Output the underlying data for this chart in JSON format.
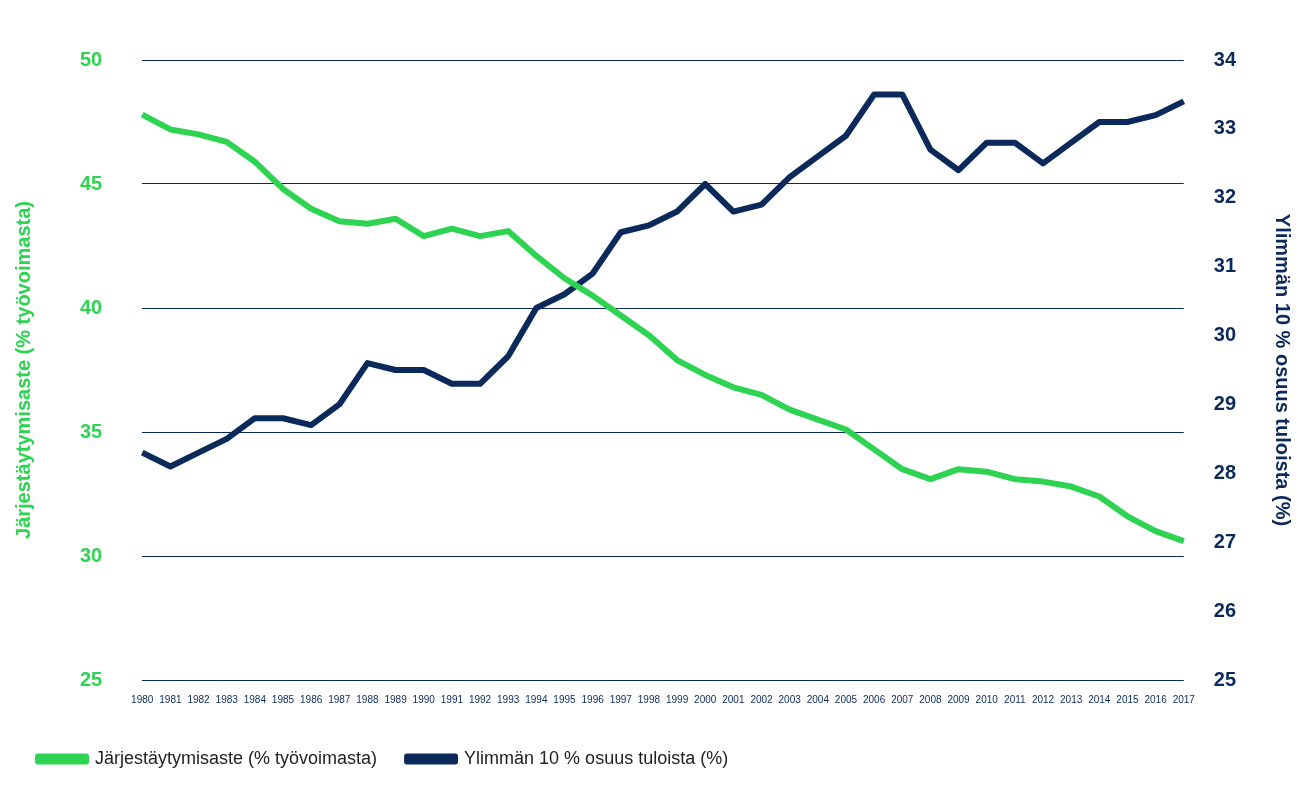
{
  "chart_data": {
    "type": "line",
    "ylabel": "Järjestäytymisaste (% työvoimasta)",
    "y2label": "Ylimmän 10 % osuus tuloista (%)",
    "categories": [
      "1980",
      "1981",
      "1982",
      "1983",
      "1984",
      "1985",
      "1986",
      "1987",
      "1988",
      "1989",
      "1990",
      "1991",
      "1992",
      "1993",
      "1994",
      "1995",
      "1996",
      "1997",
      "1998",
      "1999",
      "2000",
      "2001",
      "2002",
      "2003",
      "2004",
      "2005",
      "2006",
      "2007",
      "2008",
      "2009",
      "2010",
      "2011",
      "2012",
      "2013",
      "2014",
      "2015",
      "2016",
      "2017"
    ],
    "series": [
      {
        "name": "Järjestäytymisaste (% työvoimasta)",
        "color": "#2ed351",
        "values": [
          47.8,
          47.2,
          47.0,
          46.7,
          45.9,
          44.8,
          44.0,
          43.5,
          43.4,
          43.6,
          42.9,
          43.2,
          42.9,
          43.1,
          42.1,
          41.2,
          40.5,
          39.7,
          38.9,
          37.9,
          37.3,
          36.8,
          36.5,
          35.9,
          35.5,
          35.1,
          34.3,
          33.5,
          33.1,
          33.5,
          33.4,
          33.1,
          33.0,
          32.8,
          32.4,
          31.6,
          31.0,
          30.6
        ]
      },
      {
        "name": "Ylimmän 10 % osuus tuloista (%)",
        "color": "#0b2a5b",
        "axis": "y2",
        "values": [
          28.3,
          28.1,
          28.3,
          28.5,
          28.8,
          28.8,
          28.7,
          29.0,
          29.6,
          29.5,
          29.5,
          29.3,
          29.3,
          29.7,
          30.4,
          30.6,
          30.9,
          31.5,
          31.6,
          31.8,
          32.2,
          31.8,
          31.9,
          32.3,
          32.6,
          32.9,
          33.5,
          33.5,
          32.7,
          32.4,
          32.8,
          32.8,
          32.5,
          32.8,
          33.1,
          33.1,
          33.2,
          33.4
        ]
      }
    ],
    "ylim": [
      25,
      50
    ],
    "yticks": [
      25,
      30,
      35,
      40,
      45,
      50
    ],
    "y2lim": [
      25,
      34
    ],
    "y2ticks": [
      25,
      26,
      27,
      28,
      29,
      30,
      31,
      32,
      33,
      34
    ],
    "grid": "y",
    "legend": "bottom",
    "marker": "none",
    "line_style": "solid"
  }
}
